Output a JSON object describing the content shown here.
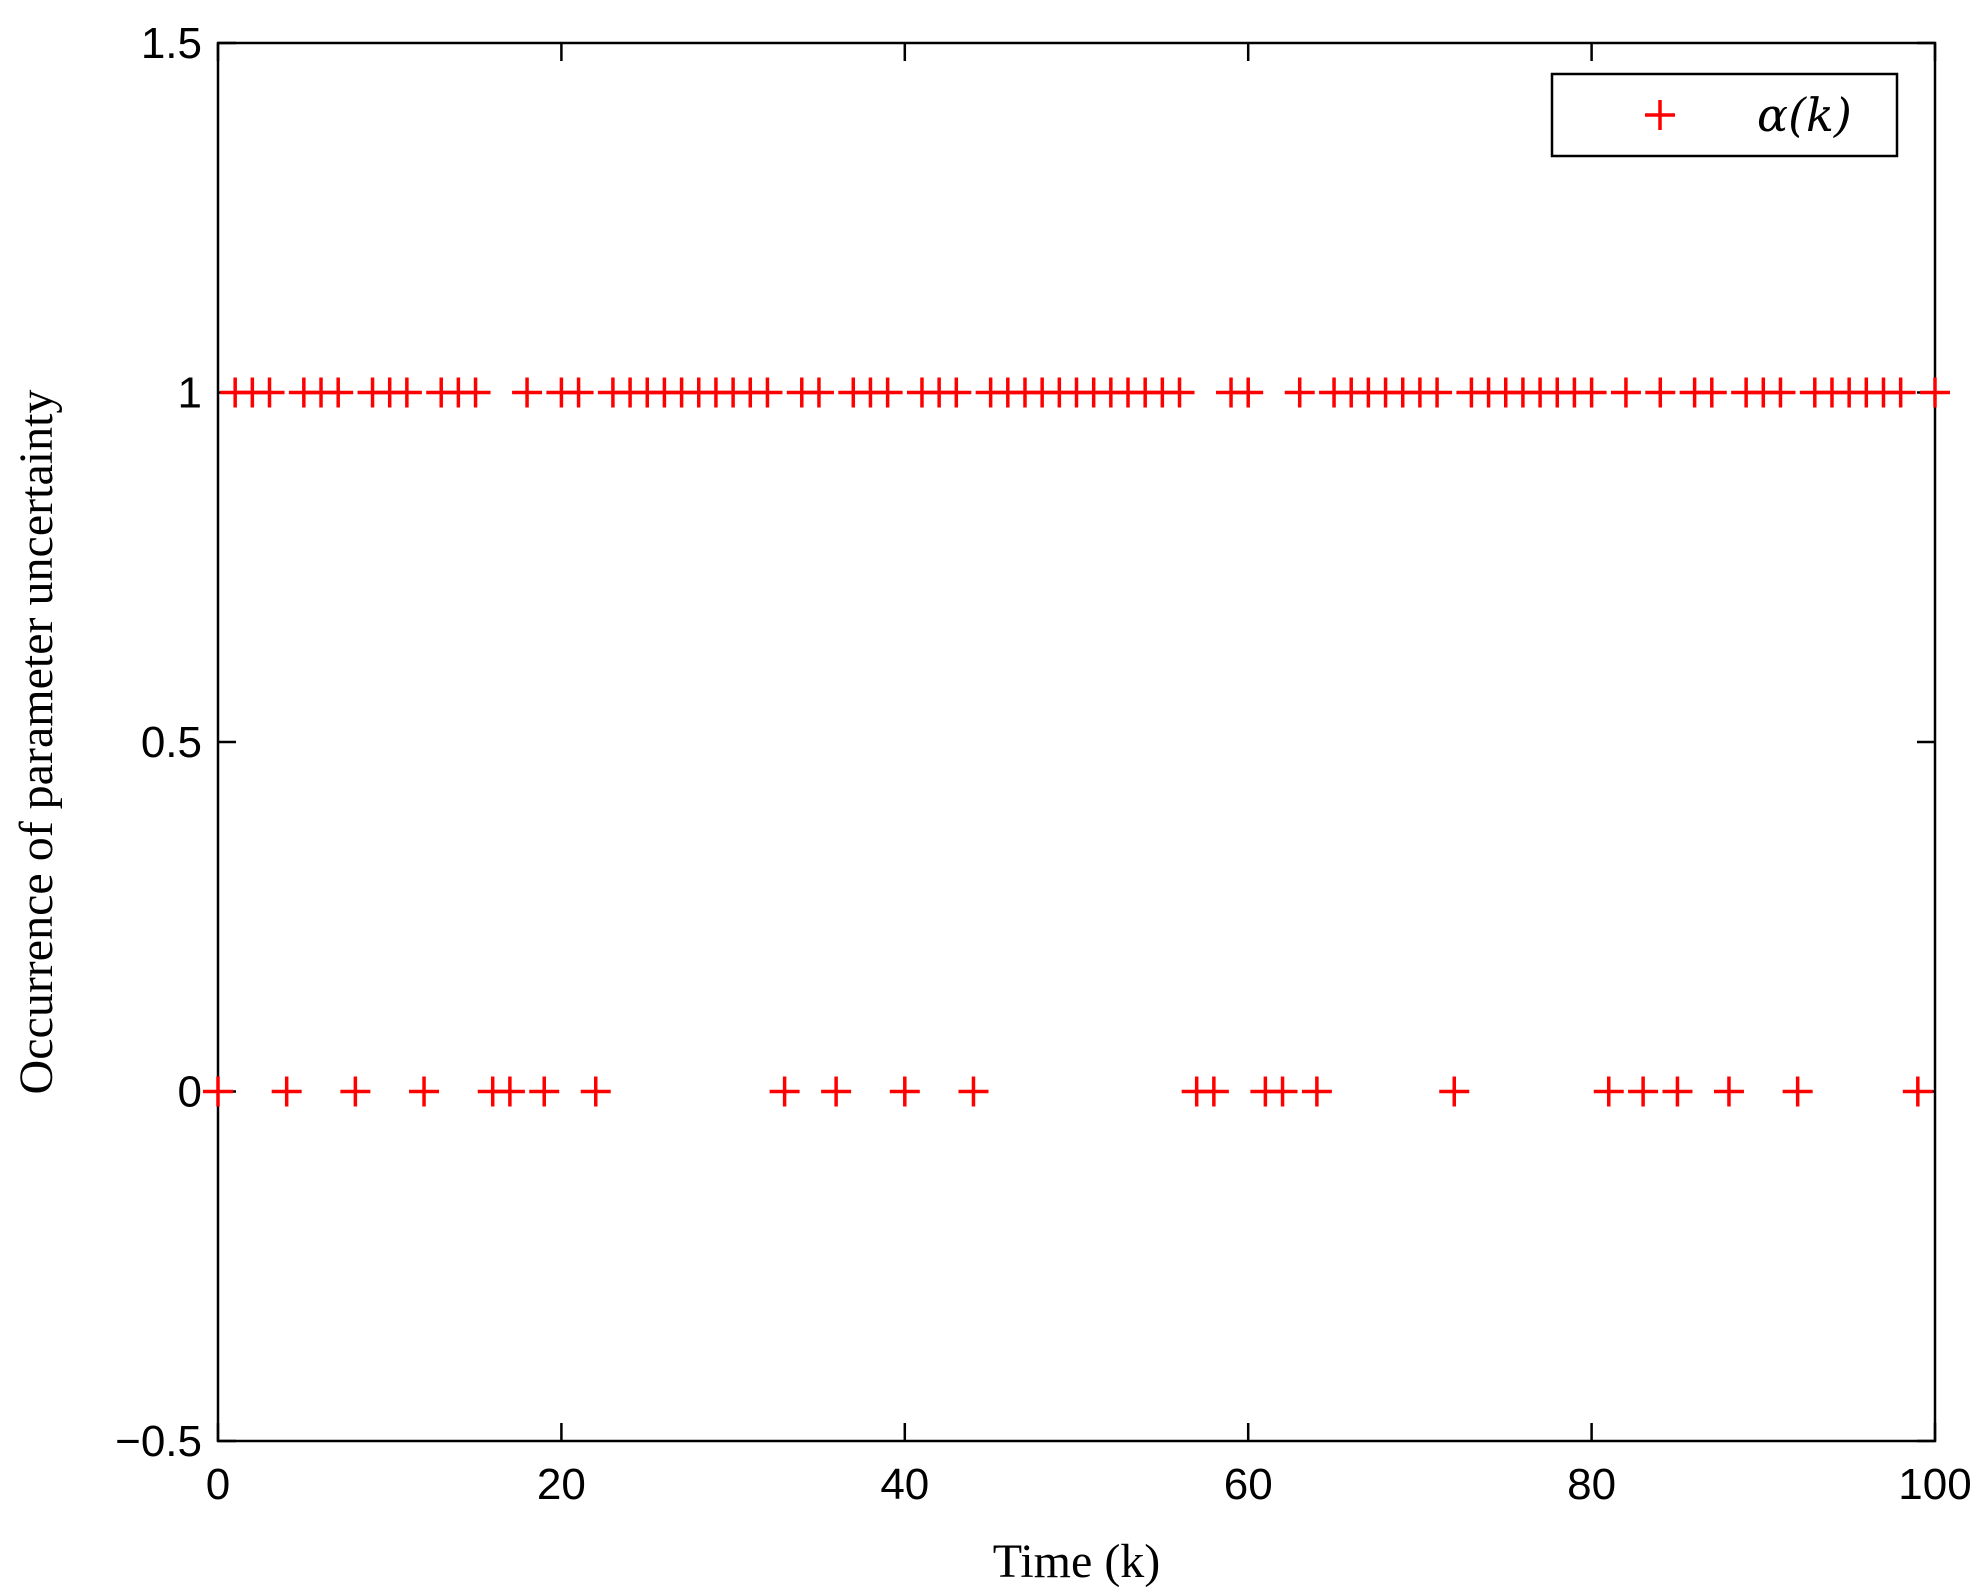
{
  "chart_data": {
    "type": "scatter",
    "xlabel": "Time (k)",
    "ylabel": "Occurrence of parameter uncertainty",
    "xlim": [
      0,
      100
    ],
    "ylim": [
      -0.5,
      1.5
    ],
    "xticks": [
      "0",
      "20",
      "40",
      "60",
      "80",
      "100"
    ],
    "yticks": [
      "−0.5",
      "0",
      "0.5",
      "1",
      "1.5"
    ],
    "grid": false,
    "legend_position": "top-right",
    "marker": "+",
    "color": "#ff0000",
    "series": [
      {
        "name": "α(k)",
        "x": [
          0,
          1,
          2,
          3,
          4,
          5,
          6,
          7,
          8,
          9,
          10,
          11,
          12,
          13,
          14,
          15,
          16,
          17,
          18,
          19,
          20,
          21,
          22,
          23,
          24,
          25,
          26,
          27,
          28,
          29,
          30,
          31,
          32,
          33,
          34,
          35,
          36,
          37,
          38,
          39,
          40,
          41,
          42,
          43,
          44,
          45,
          46,
          47,
          48,
          49,
          50,
          51,
          52,
          53,
          54,
          55,
          56,
          57,
          58,
          59,
          60,
          61,
          62,
          63,
          64,
          65,
          66,
          67,
          68,
          69,
          70,
          71,
          72,
          73,
          74,
          75,
          76,
          77,
          78,
          79,
          80,
          81,
          82,
          83,
          84,
          85,
          86,
          87,
          88,
          89,
          90,
          91,
          92,
          93,
          94,
          95,
          96,
          97,
          98,
          99,
          100
        ],
        "values": [
          0,
          1,
          1,
          1,
          0,
          1,
          1,
          1,
          0,
          1,
          1,
          1,
          0,
          1,
          1,
          1,
          0,
          0,
          1,
          0,
          1,
          1,
          0,
          1,
          1,
          1,
          1,
          1,
          1,
          1,
          1,
          1,
          1,
          0,
          1,
          1,
          0,
          1,
          1,
          1,
          0,
          1,
          1,
          1,
          0,
          1,
          1,
          1,
          1,
          1,
          1,
          1,
          1,
          1,
          1,
          1,
          1,
          0,
          0,
          1,
          1,
          0,
          0,
          1,
          0,
          1,
          1,
          1,
          1,
          1,
          1,
          1,
          0,
          1,
          1,
          1,
          1,
          1,
          1,
          1,
          1,
          0,
          1,
          0,
          1,
          0,
          1,
          1,
          0,
          1,
          1,
          1,
          0,
          1,
          1,
          1,
          1,
          1,
          1,
          0,
          1
        ]
      }
    ]
  }
}
